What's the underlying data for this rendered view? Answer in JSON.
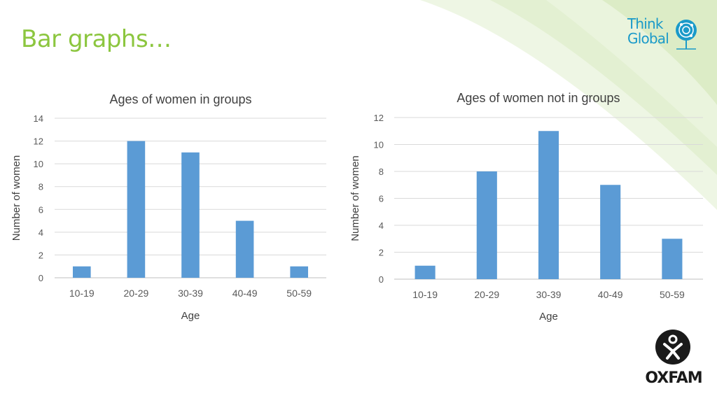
{
  "slide": {
    "title": "Bar graphs…",
    "logo_think_global": [
      "Think",
      "Global"
    ],
    "logo_oxfam": "OXFAM",
    "colors": {
      "title": "#8cc63f",
      "bar": "#5b9bd5",
      "brand_blue": "#1a9ac9"
    }
  },
  "chart_data": [
    {
      "type": "bar",
      "title": "Ages of women in groups",
      "xlabel": "Age",
      "ylabel": "Number of women",
      "categories": [
        "10-19",
        "20-29",
        "30-39",
        "40-49",
        "50-59"
      ],
      "values": [
        1,
        12,
        11,
        5,
        1
      ],
      "ylim": [
        0,
        14
      ],
      "yticks": [
        0,
        2,
        4,
        6,
        8,
        10,
        12,
        14
      ],
      "grid": true,
      "legend": "none"
    },
    {
      "type": "bar",
      "title": "Ages of women not in groups",
      "xlabel": "Age",
      "ylabel": "Number of women",
      "categories": [
        "10-19",
        "20-29",
        "30-39",
        "40-49",
        "50-59"
      ],
      "values": [
        1,
        8,
        11,
        7,
        3
      ],
      "ylim": [
        0,
        12
      ],
      "yticks": [
        0,
        2,
        4,
        6,
        8,
        10,
        12
      ],
      "grid": true,
      "legend": "none"
    }
  ]
}
